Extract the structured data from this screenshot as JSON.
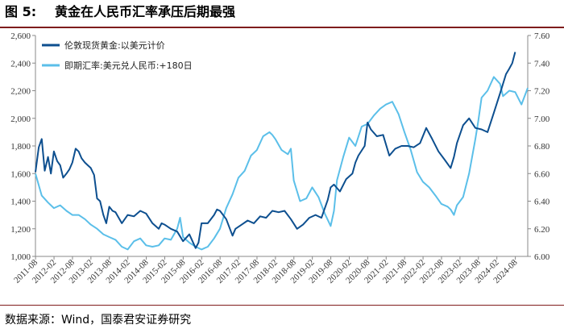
{
  "figure": {
    "label": "图 5:",
    "title": "黄金在人民币汇率承压后期最强",
    "source": "数据来源：Wind，国泰君安证券研究"
  },
  "chart_data": {
    "type": "line",
    "title": "黄金在人民币汇率承压后期最强",
    "x_tick_labels": [
      "2011-08",
      "2012-02",
      "2012-08",
      "2013-02",
      "2013-08",
      "2014-02",
      "2014-08",
      "2015-02",
      "2015-08",
      "2016-02",
      "2016-08",
      "2017-02",
      "2017-08",
      "2018-02",
      "2018-08",
      "2019-02",
      "2019-08",
      "2020-02",
      "2020-08",
      "2021-02",
      "2021-08",
      "2022-02",
      "2022-08",
      "2023-02",
      "2023-08",
      "2024-02",
      "2024-08"
    ],
    "left_axis": {
      "min": 1000,
      "max": 2600,
      "ticks": [
        "1,000",
        "1,200",
        "1,400",
        "1,600",
        "1,800",
        "2,000",
        "2,200",
        "2,400",
        "2,600"
      ]
    },
    "right_axis": {
      "min": 6.0,
      "max": 7.6,
      "ticks": [
        "6.00",
        "6.20",
        "6.40",
        "6.60",
        "6.80",
        "7.00",
        "7.20",
        "7.40",
        "7.60"
      ]
    },
    "series": [
      {
        "name": "伦敦现货黄金:以美元计价",
        "axis": "left",
        "color": "#0d4f8f",
        "x": [
          2011.58,
          2011.67,
          2011.75,
          2011.83,
          2011.92,
          2012.0,
          2012.08,
          2012.17,
          2012.25,
          2012.33,
          2012.42,
          2012.5,
          2012.58,
          2012.67,
          2012.75,
          2012.83,
          2012.92,
          2013.0,
          2013.08,
          2013.17,
          2013.25,
          2013.33,
          2013.42,
          2013.5,
          2013.58,
          2013.67,
          2013.75,
          2013.92,
          2014.08,
          2014.25,
          2014.42,
          2014.58,
          2014.75,
          2014.92,
          2015.0,
          2015.08,
          2015.25,
          2015.42,
          2015.58,
          2015.75,
          2015.92,
          2016.0,
          2016.08,
          2016.25,
          2016.42,
          2016.5,
          2016.58,
          2016.75,
          2016.92,
          2017.0,
          2017.17,
          2017.33,
          2017.5,
          2017.67,
          2017.83,
          2018.0,
          2018.17,
          2018.33,
          2018.5,
          2018.67,
          2018.83,
          2019.0,
          2019.17,
          2019.33,
          2019.5,
          2019.58,
          2019.67,
          2019.83,
          2020.0,
          2020.17,
          2020.25,
          2020.33,
          2020.5,
          2020.58,
          2020.67,
          2020.83,
          2021.0,
          2021.17,
          2021.33,
          2021.5,
          2021.67,
          2021.83,
          2022.0,
          2022.17,
          2022.33,
          2022.5,
          2022.67,
          2022.83,
          2022.92,
          2023.0,
          2023.17,
          2023.33,
          2023.5,
          2023.67,
          2023.83,
          2024.0,
          2024.17,
          2024.33,
          2024.42,
          2024.5,
          2024.58
        ],
        "values": [
          1610,
          1790,
          1850,
          1620,
          1720,
          1600,
          1760,
          1690,
          1660,
          1570,
          1600,
          1630,
          1680,
          1780,
          1760,
          1710,
          1680,
          1660,
          1640,
          1590,
          1420,
          1400,
          1300,
          1240,
          1360,
          1330,
          1320,
          1240,
          1300,
          1290,
          1330,
          1310,
          1240,
          1200,
          1240,
          1230,
          1200,
          1180,
          1110,
          1160,
          1060,
          1100,
          1240,
          1240,
          1300,
          1340,
          1330,
          1270,
          1150,
          1200,
          1230,
          1260,
          1240,
          1290,
          1280,
          1330,
          1320,
          1330,
          1270,
          1200,
          1230,
          1280,
          1300,
          1280,
          1410,
          1500,
          1520,
          1470,
          1560,
          1600,
          1680,
          1730,
          1800,
          1970,
          1920,
          1870,
          1880,
          1730,
          1780,
          1800,
          1800,
          1790,
          1820,
          1930,
          1850,
          1760,
          1700,
          1640,
          1720,
          1820,
          1950,
          2000,
          1930,
          1920,
          1900,
          2040,
          2180,
          2320,
          2360,
          2400,
          2480
        ]
      },
      {
        "name": "即期汇率:美元兑人民币:+180日",
        "axis": "right",
        "color": "#5bbfe9",
        "x": [
          2011.58,
          2011.75,
          2011.92,
          2012.08,
          2012.25,
          2012.42,
          2012.58,
          2012.75,
          2012.92,
          2013.08,
          2013.25,
          2013.42,
          2013.58,
          2013.75,
          2013.92,
          2014.08,
          2014.25,
          2014.42,
          2014.58,
          2014.75,
          2014.92,
          2015.08,
          2015.25,
          2015.42,
          2015.5,
          2015.58,
          2015.75,
          2015.92,
          2016.08,
          2016.25,
          2016.42,
          2016.58,
          2016.75,
          2016.92,
          2017.08,
          2017.25,
          2017.42,
          2017.58,
          2017.75,
          2017.92,
          2018.0,
          2018.08,
          2018.25,
          2018.42,
          2018.5,
          2018.58,
          2018.75,
          2018.92,
          2019.08,
          2019.25,
          2019.42,
          2019.58,
          2019.67,
          2019.75,
          2019.92,
          2020.08,
          2020.25,
          2020.42,
          2020.58,
          2020.75,
          2020.92,
          2021.08,
          2021.25,
          2021.42,
          2021.58,
          2021.75,
          2021.92,
          2022.08,
          2022.25,
          2022.42,
          2022.58,
          2022.75,
          2022.83,
          2022.92,
          2023.0,
          2023.17,
          2023.33,
          2023.5,
          2023.58,
          2023.67,
          2023.83,
          2024.0,
          2024.17,
          2024.25,
          2024.42,
          2024.58,
          2024.75,
          2024.92
        ],
        "values": [
          6.6,
          6.44,
          6.39,
          6.35,
          6.37,
          6.33,
          6.3,
          6.3,
          6.27,
          6.23,
          6.2,
          6.16,
          6.14,
          6.12,
          6.07,
          6.05,
          6.11,
          6.13,
          6.08,
          6.07,
          6.08,
          6.13,
          6.12,
          6.2,
          6.28,
          6.14,
          6.1,
          6.07,
          6.05,
          6.07,
          6.13,
          6.2,
          6.35,
          6.45,
          6.57,
          6.62,
          6.73,
          6.77,
          6.87,
          6.9,
          6.88,
          6.85,
          6.77,
          6.74,
          6.78,
          6.55,
          6.4,
          6.42,
          6.5,
          6.43,
          6.31,
          6.22,
          6.33,
          6.55,
          6.72,
          6.86,
          6.8,
          6.94,
          6.96,
          7.02,
          7.07,
          7.1,
          7.12,
          7.03,
          6.9,
          6.77,
          6.61,
          6.54,
          6.5,
          6.44,
          6.38,
          6.36,
          6.34,
          6.3,
          6.37,
          6.43,
          6.6,
          6.85,
          6.98,
          7.15,
          7.2,
          7.3,
          7.25,
          7.16,
          7.2,
          7.19,
          7.1,
          7.22
        ]
      }
    ]
  }
}
